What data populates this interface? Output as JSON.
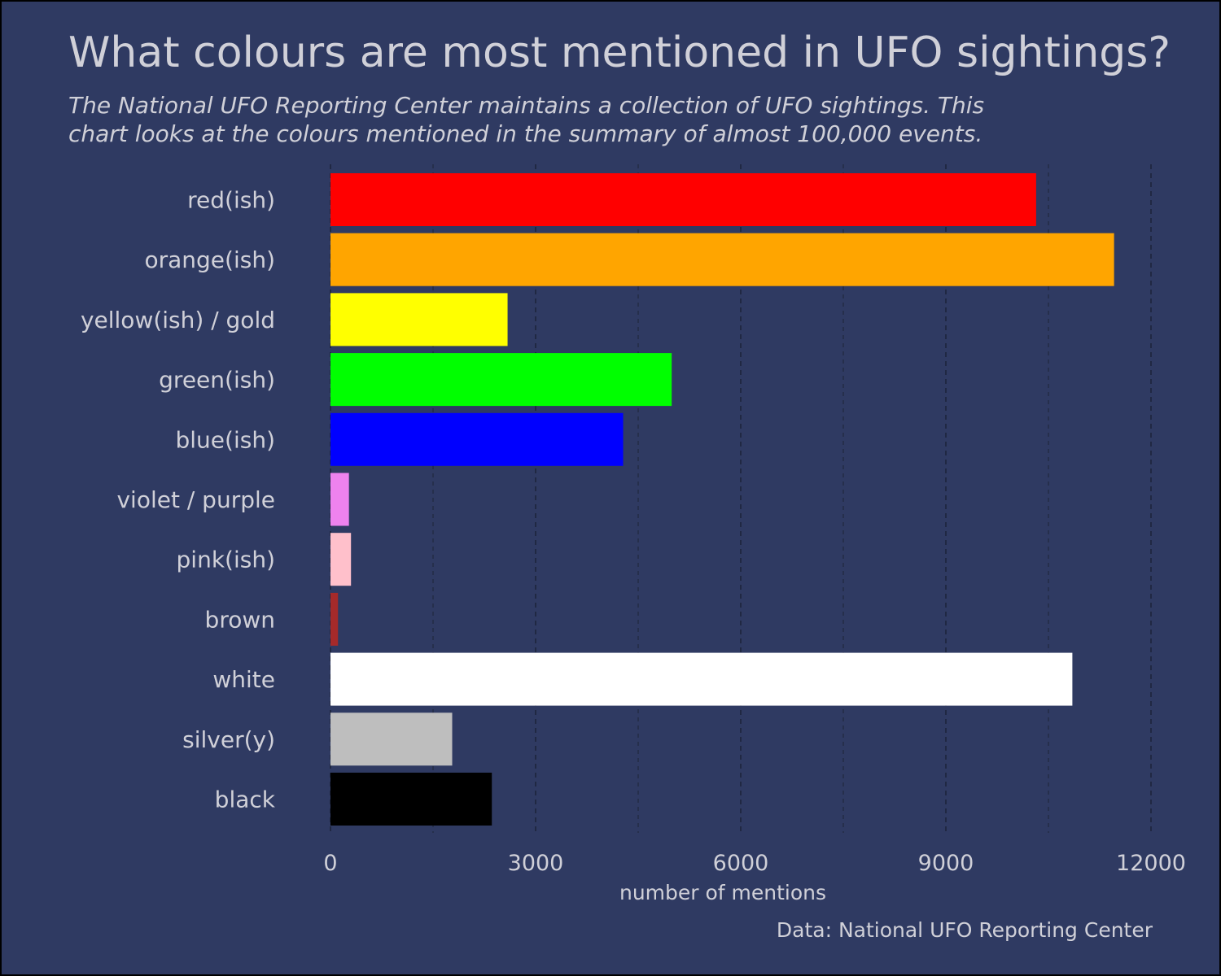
{
  "chart_data": {
    "type": "bar",
    "orientation": "horizontal",
    "title": "What colours are most mentioned in UFO sightings?",
    "subtitle_lines": [
      "The National UFO Reporting Center maintains a collection of UFO sightings. This",
      "chart looks at the colours mentioned in the summary of almost 100,000 events."
    ],
    "xlabel": "number of mentions",
    "ylabel": "",
    "caption": "Data: National UFO Reporting Center",
    "xlim": [
      0,
      12000
    ],
    "xticks": [
      0,
      3000,
      6000,
      9000,
      12000
    ],
    "xtick_labels": [
      "0",
      "3000",
      "6000",
      "9000",
      "12000"
    ],
    "grid": "vertical dashed",
    "legend": "none",
    "categories": [
      "red(ish)",
      "orange(ish)",
      "yellow(ish) / gold",
      "green(ish)",
      "blue(ish)",
      "violet / purple",
      "pink(ish)",
      "brown",
      "white",
      "silver(y)",
      "black"
    ],
    "values": [
      10320,
      11460,
      2590,
      4990,
      4280,
      270,
      300,
      110,
      10850,
      1780,
      2360
    ],
    "colors": [
      "#ff0000",
      "#ffa500",
      "#ffff00",
      "#00ff00",
      "#0000ff",
      "#ee82ee",
      "#ffc0cb",
      "#a52a2a",
      "#ffffff",
      "#bebebe",
      "#000000"
    ],
    "background_color": "#2f3a62"
  }
}
